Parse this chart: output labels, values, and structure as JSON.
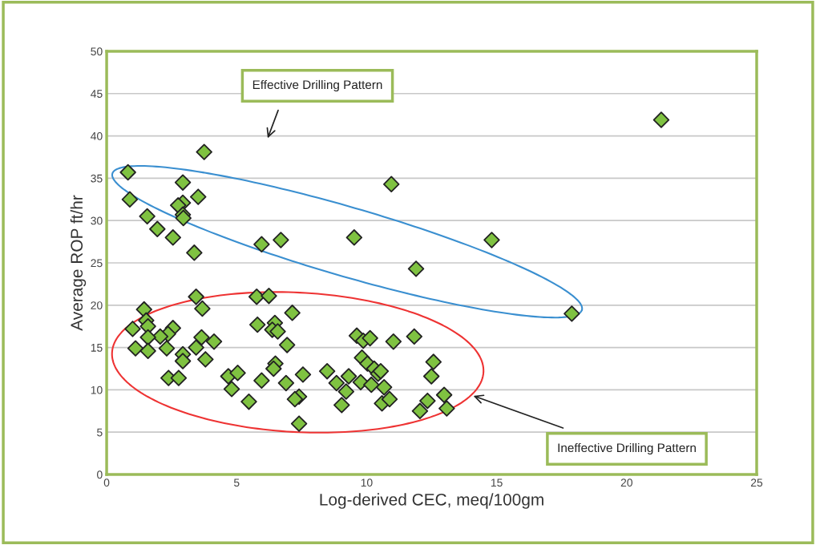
{
  "chart_data": {
    "type": "scatter",
    "xlabel": "Log-derived CEC, meq/100gm",
    "ylabel": "Average ROP ft/hr",
    "xlim": [
      0,
      25
    ],
    "xticks": [
      0,
      5,
      10,
      15,
      20,
      25
    ],
    "ylim": [
      0,
      50
    ],
    "yticks": [
      0,
      5,
      10,
      15,
      20,
      25,
      30,
      35,
      40,
      45,
      50
    ],
    "grid": "y",
    "marker": "diamond",
    "series": [
      {
        "color": "#7fc241",
        "x": [
          3.75,
          0.82,
          2.93,
          0.89,
          3.52,
          2.93,
          2.75,
          2.93,
          2.95,
          1.56,
          1.95,
          2.55,
          3.37,
          5.96,
          6.7,
          3.44,
          3.68,
          5.77,
          6.24,
          7.14,
          1.44,
          1.52,
          1.59,
          1.0,
          2.55,
          2.36,
          2.06,
          1.59,
          5.8,
          6.47,
          6.37,
          6.58,
          3.65,
          4.13,
          1.11,
          1.59,
          2.31,
          3.44,
          6.94,
          2.93,
          2.93,
          3.8,
          6.49,
          6.42,
          2.38,
          2.77,
          4.68,
          5.04,
          4.81,
          5.96,
          6.9,
          7.55,
          8.48,
          5.47,
          7.4,
          7.24,
          7.4,
          8.84,
          9.04,
          10.95,
          9.52,
          14.81,
          11.9,
          17.89,
          9.62,
          9.87,
          10.13,
          11.03,
          11.83,
          9.82,
          10.03,
          10.29,
          10.44,
          10.54,
          9.31,
          9.77,
          10.18,
          10.67,
          12.57,
          12.49,
          9.21,
          10.59,
          10.88,
          12.34,
          12.98,
          12.05,
          13.08,
          21.33
        ],
        "values": [
          38.1,
          35.7,
          34.5,
          32.5,
          32.8,
          32.1,
          31.8,
          30.7,
          30.3,
          30.5,
          29.0,
          28.0,
          26.2,
          27.2,
          27.7,
          21.0,
          19.6,
          21.0,
          21.1,
          19.1,
          19.5,
          18.2,
          17.5,
          17.2,
          17.3,
          16.6,
          16.3,
          16.2,
          17.7,
          17.9,
          17.1,
          16.9,
          16.2,
          15.7,
          14.9,
          14.6,
          14.9,
          15.0,
          15.3,
          14.2,
          13.4,
          13.6,
          13.1,
          12.5,
          11.4,
          11.4,
          11.6,
          12.0,
          10.1,
          11.1,
          10.8,
          11.8,
          12.2,
          8.6,
          9.2,
          8.9,
          6.0,
          10.8,
          8.2,
          34.3,
          28.0,
          27.7,
          24.3,
          19.0,
          16.4,
          15.8,
          16.1,
          15.7,
          16.3,
          13.8,
          13.1,
          12.5,
          11.9,
          12.2,
          11.6,
          10.9,
          10.6,
          10.3,
          13.3,
          11.6,
          9.8,
          8.4,
          8.9,
          8.7,
          9.4,
          7.5,
          7.8,
          41.9
        ]
      }
    ],
    "annotations": [
      "Effective Drilling Pattern",
      "Ineffective Drilling Pattern"
    ]
  }
}
